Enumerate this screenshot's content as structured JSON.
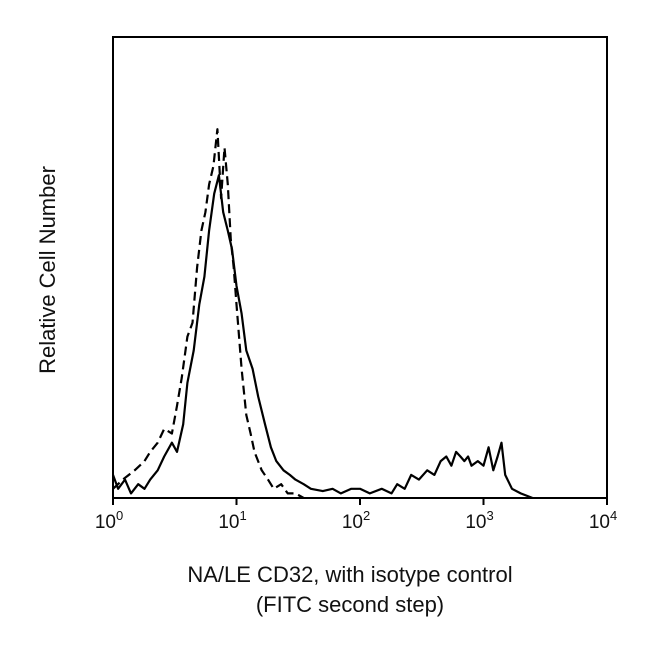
{
  "chart_data": {
    "type": "line",
    "subtype": "histogram",
    "xlabel": "NA/LE CD32, with isotype control",
    "xlabel_line2": "(FITC second step)",
    "ylabel": "Relative Cell Number",
    "xscale": "log",
    "xlim": [
      1,
      10000
    ],
    "ylim": [
      0,
      100
    ],
    "grid": false,
    "x_ticks": [
      {
        "base": "10",
        "exp": "0",
        "value": 1
      },
      {
        "base": "10",
        "exp": "1",
        "value": 10
      },
      {
        "base": "10",
        "exp": "2",
        "value": 100
      },
      {
        "base": "10",
        "exp": "3",
        "value": 1000
      },
      {
        "base": "10",
        "exp": "4",
        "value": 10000
      }
    ],
    "series": [
      {
        "style": "solid",
        "color": "#000000",
        "x": [
          1,
          1.1,
          1.25,
          1.4,
          1.6,
          1.8,
          2.0,
          2.3,
          2.6,
          3.0,
          3.3,
          3.7,
          4.0,
          4.5,
          5.0,
          5.5,
          6.0,
          6.6,
          7.2,
          7.8,
          8.5,
          9.2,
          10,
          11,
          12,
          13.5,
          15,
          17,
          19,
          21,
          24,
          27,
          30,
          35,
          40,
          50,
          60,
          70,
          85,
          100,
          120,
          150,
          180,
          200,
          230,
          260,
          300,
          350,
          400,
          450,
          500,
          550,
          600,
          650,
          700,
          750,
          800,
          900,
          1000,
          1100,
          1200,
          1300,
          1400,
          1500,
          1700,
          2000,
          2500
        ],
        "values": [
          5,
          2,
          4,
          1,
          3,
          2,
          4,
          6,
          9,
          12,
          10,
          16,
          25,
          32,
          42,
          48,
          58,
          66,
          70,
          62,
          58,
          54,
          46,
          40,
          32,
          28,
          22,
          16,
          11,
          8,
          6,
          5,
          4,
          3,
          2,
          1.5,
          2,
          1,
          2,
          2,
          1,
          2,
          1,
          3,
          2,
          5,
          4,
          6,
          5,
          8,
          9,
          7,
          10,
          9,
          8,
          9,
          7,
          8,
          7,
          11,
          6,
          9,
          12,
          5,
          2,
          1,
          0
        ]
      },
      {
        "style": "dashed",
        "color": "#000000",
        "x": [
          1,
          1.2,
          1.5,
          1.8,
          2.0,
          2.3,
          2.6,
          3.0,
          3.3,
          3.6,
          4.0,
          4.4,
          4.8,
          5.2,
          5.6,
          6.0,
          6.5,
          7.0,
          7.5,
          8.0,
          8.5,
          9.0,
          9.5,
          10,
          11,
          12,
          13,
          14,
          16,
          18,
          20,
          23,
          26,
          30,
          35
        ],
        "values": [
          2,
          4,
          6,
          8,
          10,
          12,
          15,
          14,
          20,
          26,
          35,
          38,
          50,
          58,
          62,
          68,
          72,
          80,
          65,
          76,
          68,
          56,
          50,
          42,
          28,
          18,
          14,
          10,
          6,
          4,
          2,
          3,
          1,
          1,
          0
        ]
      }
    ]
  }
}
